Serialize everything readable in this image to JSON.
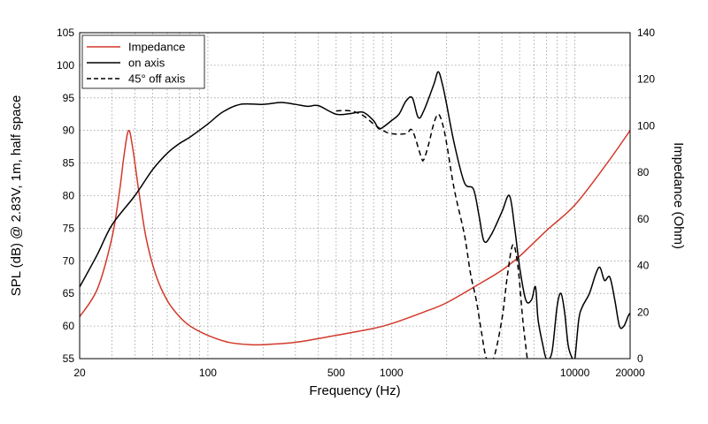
{
  "chart_data": {
    "type": "line",
    "xscale": "log",
    "xlim": [
      20,
      20000
    ],
    "ylim": [
      55,
      105
    ],
    "y2lim": [
      0,
      140
    ],
    "xlabel": "Frequency (Hz)",
    "ylabel": "SPL (dB) @ 2.83V, 1m, half space",
    "y2label": "Impedance (Ohm)",
    "xticks": [
      20,
      100,
      500,
      1000,
      10000,
      20000
    ],
    "xtick_labels": [
      "20",
      "100",
      "500",
      "1000",
      "10000",
      "20000"
    ],
    "yticks": [
      55,
      60,
      65,
      70,
      75,
      80,
      85,
      90,
      95,
      100,
      105
    ],
    "y2ticks": [
      0,
      20,
      40,
      60,
      80,
      100,
      120,
      140
    ],
    "grid": true,
    "legend_position": "top-left",
    "series": [
      {
        "name": "Impedance",
        "axis": "right",
        "color": "#d2392b",
        "style": "solid",
        "points": [
          [
            20,
            18
          ],
          [
            25,
            30
          ],
          [
            30,
            52
          ],
          [
            33,
            72
          ],
          [
            35,
            88
          ],
          [
            37,
            98
          ],
          [
            39,
            90
          ],
          [
            42,
            72
          ],
          [
            46,
            52
          ],
          [
            52,
            36
          ],
          [
            60,
            25
          ],
          [
            70,
            18
          ],
          [
            80,
            14
          ],
          [
            100,
            10
          ],
          [
            130,
            7
          ],
          [
            170,
            6
          ],
          [
            200,
            6
          ],
          [
            300,
            7
          ],
          [
            500,
            10
          ],
          [
            800,
            13
          ],
          [
            1000,
            15
          ],
          [
            1500,
            20
          ],
          [
            2000,
            24
          ],
          [
            3000,
            32
          ],
          [
            4000,
            38
          ],
          [
            5000,
            44
          ],
          [
            7000,
            55
          ],
          [
            10000,
            66
          ],
          [
            15000,
            84
          ],
          [
            20000,
            98
          ]
        ]
      },
      {
        "name": "on axis",
        "axis": "left",
        "color": "#000000",
        "style": "solid",
        "points": [
          [
            20,
            66
          ],
          [
            25,
            71
          ],
          [
            30,
            75.5
          ],
          [
            40,
            80
          ],
          [
            50,
            84
          ],
          [
            60,
            86.5
          ],
          [
            70,
            88
          ],
          [
            80,
            89
          ],
          [
            100,
            91
          ],
          [
            120,
            92.8
          ],
          [
            150,
            94
          ],
          [
            200,
            94
          ],
          [
            250,
            94.3
          ],
          [
            300,
            94
          ],
          [
            350,
            93.7
          ],
          [
            400,
            93.8
          ],
          [
            500,
            92.5
          ],
          [
            600,
            92.6
          ],
          [
            700,
            92.8
          ],
          [
            800,
            91.5
          ],
          [
            850,
            90.3
          ],
          [
            900,
            90.5
          ],
          [
            1000,
            91.5
          ],
          [
            1100,
            92.5
          ],
          [
            1200,
            94.5
          ],
          [
            1300,
            95
          ],
          [
            1400,
            92
          ],
          [
            1500,
            93
          ],
          [
            1700,
            97
          ],
          [
            1800,
            99
          ],
          [
            1900,
            97
          ],
          [
            2000,
            94
          ],
          [
            2200,
            88
          ],
          [
            2500,
            82
          ],
          [
            2800,
            81
          ],
          [
            3000,
            77
          ],
          [
            3200,
            73
          ],
          [
            3500,
            74
          ],
          [
            4000,
            77.5
          ],
          [
            4400,
            80
          ],
          [
            4700,
            75
          ],
          [
            5000,
            69
          ],
          [
            5400,
            64
          ],
          [
            5800,
            64
          ],
          [
            6100,
            66
          ],
          [
            6300,
            61
          ],
          [
            6700,
            57
          ],
          [
            7000,
            55
          ],
          [
            7500,
            56
          ],
          [
            8000,
            63
          ],
          [
            8400,
            65
          ],
          [
            8800,
            62
          ],
          [
            9200,
            57
          ],
          [
            9700,
            55
          ],
          [
            10000,
            55
          ],
          [
            10500,
            61
          ],
          [
            11000,
            63
          ],
          [
            12000,
            65
          ],
          [
            13000,
            68
          ],
          [
            13700,
            69
          ],
          [
            14500,
            67
          ],
          [
            15500,
            67.5
          ],
          [
            16500,
            64
          ],
          [
            17500,
            60
          ],
          [
            18500,
            60
          ],
          [
            19500,
            61.5
          ],
          [
            20000,
            62
          ]
        ]
      },
      {
        "name": "45° off axis",
        "axis": "left",
        "color": "#000000",
        "style": "dashed",
        "points": [
          [
            500,
            93
          ],
          [
            600,
            93
          ],
          [
            700,
            92.3
          ],
          [
            800,
            91
          ],
          [
            900,
            90
          ],
          [
            1000,
            89.5
          ],
          [
            1200,
            89.5
          ],
          [
            1300,
            90
          ],
          [
            1450,
            86
          ],
          [
            1500,
            85.5
          ],
          [
            1600,
            88
          ],
          [
            1700,
            91
          ],
          [
            1800,
            92.5
          ],
          [
            1900,
            91
          ],
          [
            2000,
            88
          ],
          [
            2200,
            81
          ],
          [
            2500,
            74
          ],
          [
            2700,
            68
          ],
          [
            2900,
            64
          ],
          [
            3100,
            59
          ],
          [
            3300,
            55
          ],
          [
            3600,
            55
          ],
          [
            4000,
            61
          ],
          [
            4300,
            68
          ],
          [
            4600,
            72.5
          ],
          [
            4900,
            69
          ],
          [
            5200,
            61
          ],
          [
            5500,
            55
          ]
        ]
      }
    ]
  }
}
